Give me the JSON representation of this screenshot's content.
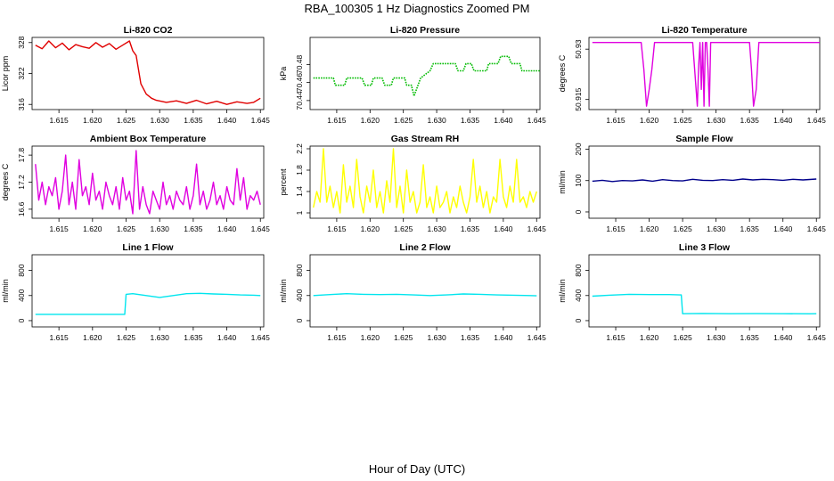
{
  "figure": {
    "title": "RBA_100305  1 Hz Diagnostics Zoomed PM",
    "xlabel": "Hour of Day (UTC)"
  },
  "x_tick_labels": [
    "1.615",
    "1.620",
    "1.625",
    "1.630",
    "1.635",
    "1.640",
    "1.645"
  ],
  "chart_data": [
    {
      "type": "line",
      "title": "Li-820 CO2",
      "ylabel": "Licor ppm",
      "color": "#e00000",
      "style": "line",
      "xlim": [
        1.611,
        1.6455
      ],
      "ylim": [
        315,
        329
      ],
      "yticks": [
        316,
        322,
        328
      ],
      "x": [
        1.6115,
        1.6125,
        1.6135,
        1.6145,
        1.6155,
        1.6165,
        1.6175,
        1.6185,
        1.6195,
        1.6205,
        1.6215,
        1.6225,
        1.6235,
        1.6245,
        1.6255,
        1.626,
        1.6265,
        1.6272,
        1.628,
        1.6288,
        1.6295,
        1.631,
        1.6325,
        1.634,
        1.6355,
        1.637,
        1.6385,
        1.64,
        1.6415,
        1.643,
        1.644,
        1.645
      ],
      "values": [
        327.5,
        326.8,
        328.3,
        327.0,
        327.9,
        326.6,
        327.6,
        327.2,
        326.9,
        328.0,
        327.1,
        327.8,
        326.7,
        327.5,
        328.3,
        326.4,
        325.5,
        320.0,
        318.0,
        317.2,
        316.8,
        316.4,
        316.7,
        316.2,
        316.8,
        316.1,
        316.6,
        316.0,
        316.5,
        316.2,
        316.4,
        317.2
      ]
    },
    {
      "type": "line",
      "title": "Li-820 Pressure",
      "ylabel": "kPa",
      "color": "#00bb00",
      "style": "dotted",
      "xlim": [
        1.611,
        1.6455
      ],
      "ylim": [
        70.43,
        70.51
      ],
      "yticks": [
        70.44,
        70.46,
        70.48
      ],
      "x": [
        1.6115,
        1.6145,
        1.6148,
        1.6162,
        1.6165,
        1.6188,
        1.6192,
        1.6202,
        1.6205,
        1.6218,
        1.6222,
        1.6232,
        1.6235,
        1.6252,
        1.6255,
        1.6262,
        1.6266,
        1.6272,
        1.6276,
        1.629,
        1.6295,
        1.6328,
        1.6332,
        1.634,
        1.6344,
        1.6352,
        1.6356,
        1.6375,
        1.6378,
        1.6392,
        1.6396,
        1.6408,
        1.6412,
        1.6425,
        1.6428,
        1.6455
      ],
      "values": [
        70.465,
        70.465,
        70.457,
        70.457,
        70.465,
        70.465,
        70.457,
        70.457,
        70.465,
        70.465,
        70.457,
        70.457,
        70.465,
        70.465,
        70.457,
        70.457,
        70.445,
        70.457,
        70.465,
        70.473,
        70.481,
        70.481,
        70.473,
        70.473,
        70.481,
        70.481,
        70.473,
        70.473,
        70.481,
        70.481,
        70.489,
        70.489,
        70.481,
        70.481,
        70.473,
        70.473
      ]
    },
    {
      "type": "line",
      "title": "Li-820 Temperature",
      "ylabel": "degrees C",
      "color": "#e000e0",
      "style": "line",
      "xlim": [
        1.611,
        1.6455
      ],
      "ylim": [
        50.912,
        50.9335
      ],
      "yticks": [
        50.915,
        50.93
      ],
      "x": [
        1.6115,
        1.6188,
        1.6192,
        1.6196,
        1.62,
        1.6204,
        1.6208,
        1.6212,
        1.6265,
        1.6268,
        1.6272,
        1.6274,
        1.6276,
        1.6278,
        1.628,
        1.6282,
        1.6284,
        1.6286,
        1.6288,
        1.629,
        1.6292,
        1.635,
        1.6353,
        1.6356,
        1.636,
        1.6364,
        1.6455
      ],
      "values": [
        50.932,
        50.932,
        50.924,
        50.913,
        50.918,
        50.924,
        50.932,
        50.932,
        50.932,
        50.924,
        50.913,
        50.925,
        50.932,
        50.918,
        50.932,
        50.913,
        50.932,
        50.932,
        50.924,
        50.913,
        50.932,
        50.932,
        50.924,
        50.913,
        50.918,
        50.932,
        50.932
      ]
    },
    {
      "type": "line",
      "title": "Ambient Box Temperature",
      "ylabel": "degrees C",
      "color": "#e000e0",
      "style": "line",
      "xlim": [
        1.611,
        1.6455
      ],
      "ylim": [
        16.4,
        18.0
      ],
      "yticks": [
        16.6,
        17.2,
        17.8
      ],
      "x": [
        1.6115,
        1.612,
        1.6125,
        1.613,
        1.6135,
        1.614,
        1.6145,
        1.615,
        1.6155,
        1.616,
        1.6165,
        1.617,
        1.6175,
        1.618,
        1.6185,
        1.619,
        1.6195,
        1.62,
        1.6205,
        1.621,
        1.6215,
        1.622,
        1.6225,
        1.623,
        1.6235,
        1.624,
        1.6245,
        1.625,
        1.6255,
        1.626,
        1.6265,
        1.627,
        1.6275,
        1.628,
        1.6285,
        1.629,
        1.6295,
        1.63,
        1.6305,
        1.631,
        1.6315,
        1.632,
        1.6325,
        1.633,
        1.6335,
        1.634,
        1.6345,
        1.635,
        1.6355,
        1.636,
        1.6365,
        1.637,
        1.6375,
        1.638,
        1.6385,
        1.639,
        1.6395,
        1.64,
        1.6405,
        1.641,
        1.6415,
        1.642,
        1.6425,
        1.643,
        1.6435,
        1.644,
        1.6445,
        1.645
      ],
      "values": [
        17.6,
        16.8,
        17.2,
        16.7,
        17.1,
        16.9,
        17.3,
        16.6,
        17.0,
        17.8,
        16.7,
        17.2,
        16.6,
        17.7,
        16.9,
        17.1,
        16.7,
        17.4,
        16.8,
        17.0,
        16.6,
        17.2,
        16.9,
        16.7,
        17.1,
        16.6,
        17.3,
        16.8,
        17.0,
        16.5,
        17.9,
        16.6,
        17.1,
        16.7,
        16.5,
        17.0,
        16.8,
        16.6,
        17.2,
        16.7,
        16.9,
        16.6,
        17.0,
        16.8,
        16.7,
        17.1,
        16.6,
        16.9,
        17.6,
        16.7,
        17.0,
        16.6,
        16.8,
        17.2,
        16.7,
        16.9,
        16.6,
        17.1,
        16.8,
        16.7,
        17.5,
        16.8,
        17.3,
        16.6,
        16.9,
        16.8,
        17.0,
        16.7
      ]
    },
    {
      "type": "line",
      "title": "Gas Stream RH",
      "ylabel": "percent",
      "color": "#ffff00",
      "style": "line",
      "xlim": [
        1.611,
        1.6455
      ],
      "ylim": [
        0.9,
        2.25
      ],
      "yticks": [
        1.0,
        1.4,
        1.8,
        2.2
      ],
      "x": [
        1.6115,
        1.612,
        1.6125,
        1.613,
        1.6135,
        1.614,
        1.6145,
        1.615,
        1.6155,
        1.616,
        1.6165,
        1.617,
        1.6175,
        1.618,
        1.6185,
        1.619,
        1.6195,
        1.62,
        1.6205,
        1.621,
        1.6215,
        1.622,
        1.6225,
        1.623,
        1.6235,
        1.624,
        1.6245,
        1.625,
        1.6255,
        1.626,
        1.6265,
        1.627,
        1.6275,
        1.628,
        1.6285,
        1.629,
        1.6295,
        1.63,
        1.6305,
        1.631,
        1.6315,
        1.632,
        1.6325,
        1.633,
        1.6335,
        1.634,
        1.6345,
        1.635,
        1.6355,
        1.636,
        1.6365,
        1.637,
        1.6375,
        1.638,
        1.6385,
        1.639,
        1.6395,
        1.64,
        1.6405,
        1.641,
        1.6415,
        1.642,
        1.6425,
        1.643,
        1.6435,
        1.644,
        1.6445,
        1.645
      ],
      "values": [
        1.1,
        1.4,
        1.2,
        2.2,
        1.2,
        1.5,
        1.1,
        1.4,
        1.0,
        1.9,
        1.2,
        1.5,
        1.1,
        2.0,
        1.3,
        1.0,
        1.5,
        1.2,
        1.8,
        1.1,
        1.4,
        1.0,
        1.6,
        1.2,
        2.2,
        1.1,
        1.5,
        1.0,
        1.8,
        1.2,
        1.4,
        1.0,
        1.2,
        1.9,
        1.1,
        1.3,
        1.0,
        1.5,
        1.1,
        1.2,
        1.4,
        1.0,
        1.3,
        1.1,
        1.5,
        1.2,
        1.0,
        1.3,
        2.0,
        1.2,
        1.5,
        1.1,
        1.4,
        1.0,
        1.3,
        1.2,
        2.0,
        1.3,
        1.1,
        1.5,
        1.2,
        2.0,
        1.2,
        1.3,
        1.1,
        1.4,
        1.2,
        1.4
      ]
    },
    {
      "type": "line",
      "title": "Sample Flow",
      "ylabel": "ml/min",
      "color": "#00008b",
      "style": "line",
      "xlim": [
        1.611,
        1.6455
      ],
      "ylim": [
        -20,
        210
      ],
      "yticks": [
        0,
        100,
        200
      ],
      "x": [
        1.6115,
        1.613,
        1.6145,
        1.616,
        1.6175,
        1.619,
        1.6205,
        1.622,
        1.6235,
        1.625,
        1.6265,
        1.628,
        1.6295,
        1.631,
        1.6325,
        1.634,
        1.6355,
        1.637,
        1.6385,
        1.64,
        1.6415,
        1.643,
        1.645
      ],
      "values": [
        98,
        101,
        97,
        100,
        99,
        102,
        98,
        103,
        100,
        99,
        104,
        101,
        100,
        103,
        101,
        105,
        102,
        104,
        103,
        101,
        104,
        102,
        105
      ]
    },
    {
      "type": "line",
      "title": "Line 1 Flow",
      "ylabel": "ml/min",
      "color": "#00e5ee",
      "style": "line",
      "xlim": [
        1.611,
        1.6455
      ],
      "ylim": [
        -100,
        1050
      ],
      "yticks": [
        0,
        400,
        800
      ],
      "x": [
        1.6115,
        1.6248,
        1.625,
        1.626,
        1.628,
        1.63,
        1.632,
        1.634,
        1.636,
        1.638,
        1.64,
        1.642,
        1.644,
        1.645
      ],
      "values": [
        100,
        100,
        420,
        430,
        400,
        370,
        400,
        430,
        435,
        425,
        420,
        410,
        405,
        400
      ]
    },
    {
      "type": "line",
      "title": "Line 2 Flow",
      "ylabel": "ml/min",
      "color": "#00e5ee",
      "style": "line",
      "xlim": [
        1.611,
        1.6455
      ],
      "ylim": [
        -100,
        1050
      ],
      "yticks": [
        0,
        400,
        800
      ],
      "x": [
        1.6115,
        1.614,
        1.6165,
        1.619,
        1.6215,
        1.624,
        1.6265,
        1.629,
        1.6315,
        1.634,
        1.6365,
        1.639,
        1.6415,
        1.644,
        1.645
      ],
      "values": [
        400,
        415,
        430,
        420,
        415,
        420,
        410,
        400,
        410,
        425,
        420,
        410,
        405,
        400,
        395
      ]
    },
    {
      "type": "line",
      "title": "Line 3 Flow",
      "ylabel": "ml/min",
      "color": "#00e5ee",
      "style": "line",
      "xlim": [
        1.611,
        1.6455
      ],
      "ylim": [
        -100,
        1050
      ],
      "yticks": [
        0,
        400,
        800
      ],
      "x": [
        1.6115,
        1.614,
        1.617,
        1.62,
        1.623,
        1.6248,
        1.625,
        1.628,
        1.632,
        1.636,
        1.64,
        1.644,
        1.645
      ],
      "values": [
        390,
        405,
        420,
        415,
        415,
        410,
        110,
        115,
        110,
        112,
        110,
        108,
        110
      ]
    }
  ]
}
